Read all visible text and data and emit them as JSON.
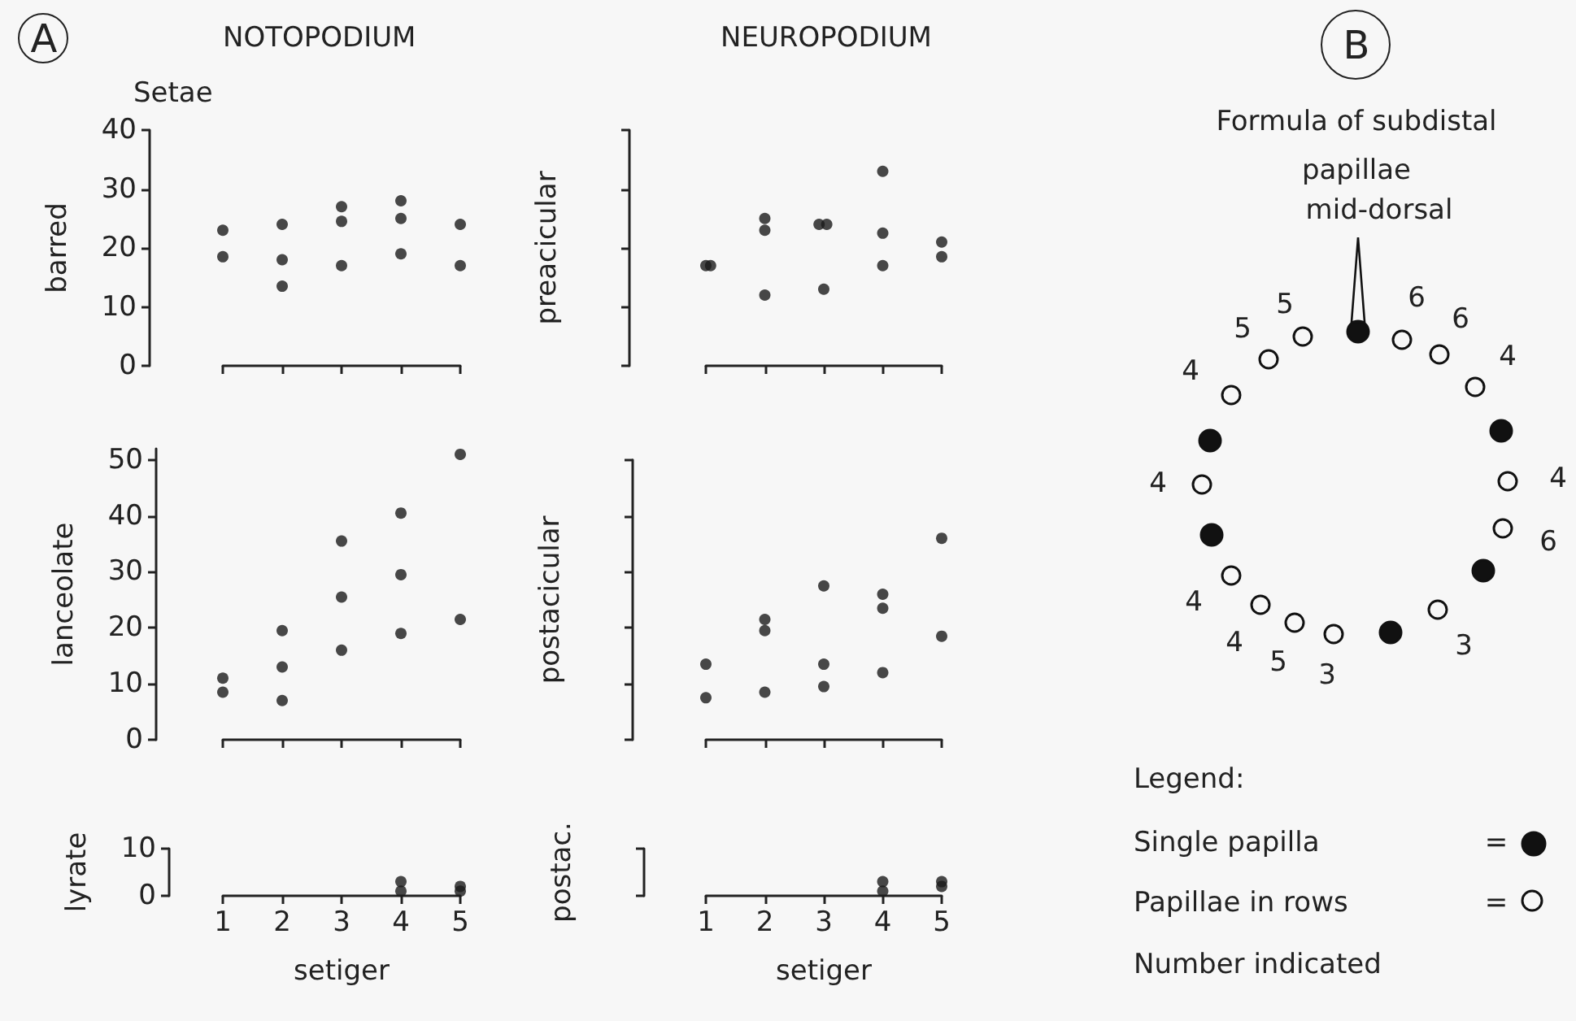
{
  "chart_data": [
    {
      "type": "scatter",
      "title": "NOTOPODIUM",
      "ylabel": "barred",
      "annotations": [
        "A",
        "Setae"
      ],
      "x": [
        1,
        1,
        2,
        2,
        2,
        3,
        3,
        3,
        4,
        4,
        4,
        5,
        5
      ],
      "values": [
        23,
        18.5,
        24,
        18,
        13.5,
        27,
        24.5,
        17,
        28,
        25,
        19,
        24,
        17
      ],
      "color": "#1a1a1a",
      "marker": "circle",
      "xlim": [
        1,
        5
      ],
      "xticks": [
        1,
        2,
        3,
        4,
        5
      ],
      "ylim": [
        0,
        40
      ],
      "yticks": [
        0,
        10,
        20,
        30,
        40
      ],
      "tick_labels": "y"
    },
    {
      "type": "scatter",
      "title": "NEUROPODIUM",
      "ylabel": "preacicular",
      "x": [
        1,
        1.08,
        2,
        2,
        2,
        2.92,
        3.05,
        3,
        4,
        4,
        4,
        5,
        5
      ],
      "values": [
        17,
        17,
        25,
        23,
        12,
        24,
        24,
        13,
        33,
        22.5,
        17,
        21,
        18.5
      ],
      "color": "#1a1a1a",
      "marker": "circle",
      "xlim": [
        1,
        5
      ],
      "xticks": [
        1,
        2,
        3,
        4,
        5
      ],
      "ylim": [
        0,
        40
      ],
      "yticks": [
        0,
        10,
        20,
        30,
        40
      ],
      "tick_labels": false
    },
    {
      "type": "scatter",
      "ylabel": "lanceolate",
      "x": [
        1,
        1,
        2,
        2,
        2,
        3,
        3,
        3,
        4,
        4,
        4,
        5,
        5
      ],
      "values": [
        11,
        8.5,
        19.5,
        13,
        7,
        35.5,
        25.5,
        16,
        40.5,
        29.5,
        19,
        51,
        21.5
      ],
      "color": "#1a1a1a",
      "marker": "circle",
      "xlim": [
        1,
        5
      ],
      "xticks": [
        1,
        2,
        3,
        4,
        5
      ],
      "ylim": [
        0,
        52
      ],
      "yticks": [
        0,
        10,
        20,
        30,
        40,
        50
      ],
      "tick_labels": "y"
    },
    {
      "type": "scatter",
      "ylabel": "postacicular",
      "x": [
        1,
        1,
        2,
        2,
        2,
        3,
        3,
        3,
        4,
        4,
        4,
        5,
        5
      ],
      "values": [
        13.5,
        7.5,
        21.5,
        19.5,
        8.5,
        27.5,
        13.5,
        9.5,
        26,
        23.5,
        12,
        36,
        18.5
      ],
      "color": "#1a1a1a",
      "marker": "circle",
      "xlim": [
        1,
        5
      ],
      "xticks": [
        1,
        2,
        3,
        4,
        5
      ],
      "ylim": [
        0,
        50
      ],
      "yticks": [
        0,
        10,
        20,
        30,
        40,
        50
      ],
      "tick_labels": false
    },
    {
      "type": "scatter",
      "ylabel": "lyrate",
      "xlabel": "setiger",
      "x": [
        4,
        4,
        5,
        5
      ],
      "values": [
        3,
        1,
        2,
        1
      ],
      "color": "#1a1a1a",
      "marker": "circle",
      "xlim": [
        1,
        5
      ],
      "xticks": [
        1,
        2,
        3,
        4,
        5
      ],
      "ylim": [
        0,
        10
      ],
      "yticks": [
        0,
        10
      ]
    },
    {
      "type": "scatter",
      "ylabel": "postac.",
      "xlabel": "setiger",
      "x": [
        4,
        4,
        5,
        5
      ],
      "values": [
        3,
        1,
        3,
        2
      ],
      "color": "#1a1a1a",
      "marker": "circle",
      "xlim": [
        1,
        5
      ],
      "xticks": [
        1,
        2,
        3,
        4,
        5
      ],
      "ylim": [
        0,
        10
      ],
      "yticks": [
        0,
        10
      ],
      "tick_labels": "x"
    },
    {
      "type": "other",
      "title": "Formula of subdistal papillae",
      "annotations": [
        "B",
        "mid-dorsal",
        "6",
        "6",
        "4",
        "4",
        "6",
        "3",
        "3",
        "5",
        "4",
        "4",
        "4",
        "4",
        "5",
        "5",
        "Legend:",
        "Single papilla",
        "=",
        "Papillae in rows",
        "=",
        "Number indicated"
      ]
    }
  ]
}
